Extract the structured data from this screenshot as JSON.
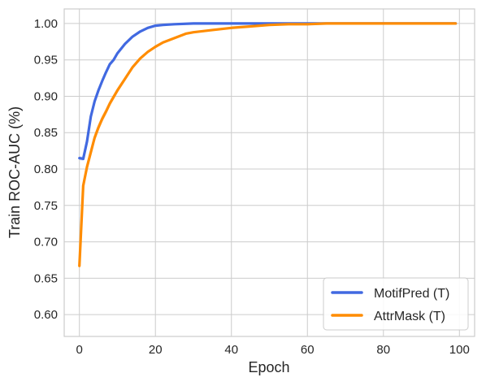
{
  "chart_data": {
    "type": "line",
    "title": "",
    "xlabel": "Epoch",
    "ylabel": "Train ROC-AUC (%)",
    "xlim": [
      -4,
      104
    ],
    "ylim": [
      0.57,
      1.02
    ],
    "xticks": [
      0,
      20,
      40,
      60,
      80,
      100
    ],
    "yticks": [
      0.6,
      0.65,
      0.7,
      0.75,
      0.8,
      0.85,
      0.9,
      0.95,
      1.0
    ],
    "xtick_labels": [
      "0",
      "20",
      "40",
      "60",
      "80",
      "100"
    ],
    "ytick_labels": [
      "0.60",
      "0.65",
      "0.70",
      "0.75",
      "0.80",
      "0.85",
      "0.90",
      "0.95",
      "1.00"
    ],
    "grid": true,
    "legend_position": "lower-right",
    "series": [
      {
        "name": "MotifPred (T)",
        "color": "#4169e1",
        "x": [
          0,
          1,
          2,
          3,
          4,
          5,
          6,
          7,
          8,
          9,
          10,
          12,
          14,
          16,
          18,
          20,
          22,
          25,
          30,
          40,
          50,
          60,
          70,
          80,
          90,
          99
        ],
        "y": [
          0.815,
          0.814,
          0.838,
          0.872,
          0.893,
          0.908,
          0.921,
          0.933,
          0.944,
          0.95,
          0.959,
          0.972,
          0.982,
          0.989,
          0.994,
          0.997,
          0.998,
          0.999,
          1.0,
          1.0,
          1.0,
          1.0,
          1.0,
          1.0,
          1.0,
          1.0
        ]
      },
      {
        "name": "AttrMask (T)",
        "color": "#ff8c00",
        "x": [
          0,
          1,
          2,
          3,
          4,
          5,
          6,
          7,
          8,
          9,
          10,
          12,
          14,
          16,
          18,
          20,
          22,
          25,
          28,
          30,
          35,
          40,
          45,
          50,
          55,
          60,
          65,
          70,
          80,
          90,
          99
        ],
        "y": [
          0.667,
          0.777,
          0.803,
          0.823,
          0.843,
          0.857,
          0.869,
          0.879,
          0.89,
          0.899,
          0.908,
          0.924,
          0.94,
          0.952,
          0.961,
          0.968,
          0.974,
          0.98,
          0.986,
          0.988,
          0.991,
          0.994,
          0.996,
          0.998,
          0.999,
          0.999,
          1.0,
          1.0,
          1.0,
          1.0,
          1.0
        ]
      }
    ]
  }
}
